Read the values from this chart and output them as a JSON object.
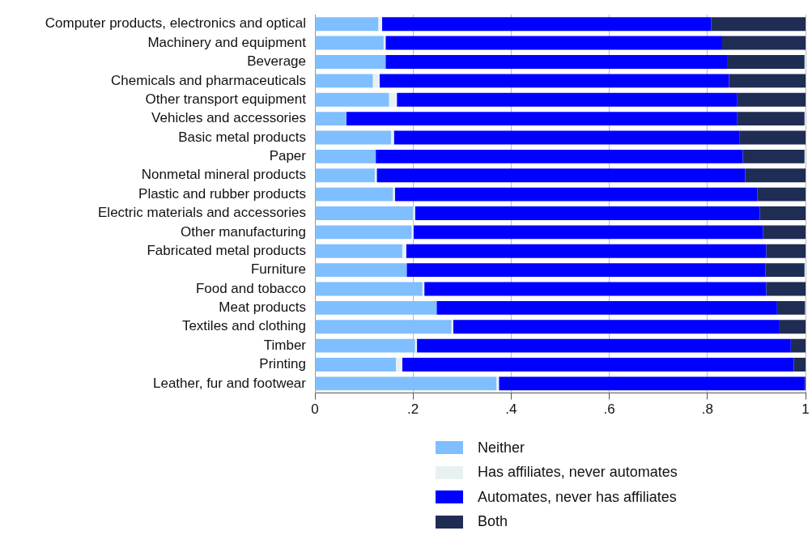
{
  "chart_data": {
    "type": "bar",
    "orientation": "horizontal",
    "stacked": true,
    "categories": [
      "Computer products, electronics and optical",
      "Machinery and equipment",
      "Beverage",
      "Chemicals and pharmaceuticals",
      "Other transport equipment",
      "Vehicles and accessories",
      "Basic metal products",
      "Paper",
      "Nonmetal mineral products",
      "Plastic and rubber products",
      "Electric materials and accessories",
      "Other manufacturing",
      "Fabricated metal products",
      "Furniture",
      "Food and tobacco",
      "Meat products",
      "Textiles and clothing",
      "Timber",
      "Printing",
      "Leather, fur and footwear"
    ],
    "series": [
      {
        "name": "Neither",
        "color": "#80bfff",
        "values": [
          0.129,
          0.14,
          0.144,
          0.118,
          0.151,
          0.064,
          0.155,
          0.124,
          0.122,
          0.159,
          0.2,
          0.197,
          0.178,
          0.187,
          0.219,
          0.248,
          0.278,
          0.204,
          0.165,
          0.37
        ]
      },
      {
        "name": "Has affiliates, never automates",
        "color": "#e8f0f2",
        "values": [
          0.008,
          0.004,
          null,
          0.014,
          0.016,
          null,
          0.006,
          null,
          0.004,
          0.004,
          0.004,
          0.004,
          0.008,
          null,
          0.004,
          null,
          0.004,
          0.004,
          0.013,
          0.005
        ]
      },
      {
        "name": "Automates, never has affiliates",
        "color": "#0000ff",
        "values": [
          0.671,
          0.686,
          0.696,
          0.712,
          0.694,
          0.797,
          0.705,
          0.748,
          0.751,
          0.739,
          0.703,
          0.712,
          0.734,
          0.731,
          0.697,
          0.694,
          0.665,
          0.762,
          0.798,
          0.623
        ]
      },
      {
        "name": "Both",
        "color": "#1f2d55",
        "values": [
          0.192,
          0.17,
          0.158,
          0.156,
          0.139,
          0.137,
          0.134,
          0.126,
          0.123,
          0.098,
          0.093,
          0.087,
          0.08,
          0.08,
          0.08,
          0.057,
          0.053,
          0.03,
          0.024,
          0.002
        ]
      }
    ],
    "xlim": [
      0,
      1
    ],
    "xticks": [
      0,
      {
        "value": 0.2,
        "label": ".2"
      },
      {
        "value": 0.4,
        "label": ".4"
      },
      {
        "value": 0.6,
        "label": ".6"
      },
      {
        "value": 0.8,
        "label": ".8"
      },
      1
    ],
    "grid": "x",
    "legend": "bottom"
  }
}
